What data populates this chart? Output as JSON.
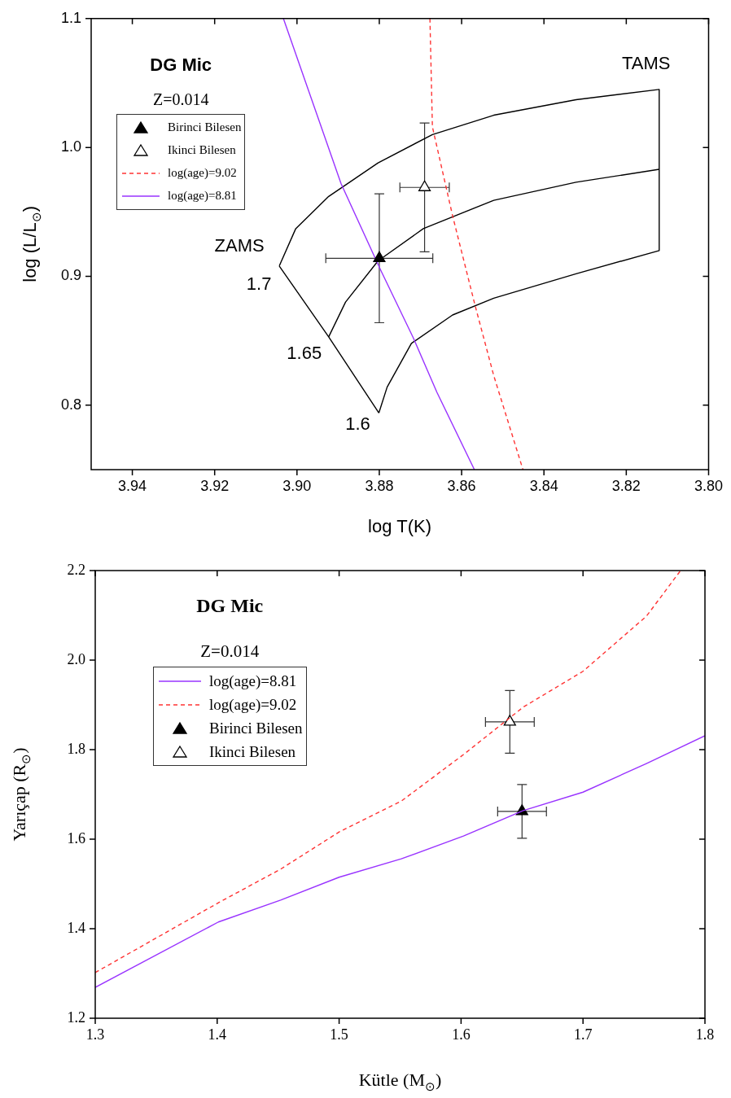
{
  "chart_data": [
    {
      "type": "line",
      "title": "DG Mic",
      "subtitle": "Z=0.014",
      "xlabel": "log T(K)",
      "ylabel": "log (L/L$_{⊙}$)",
      "annotations": [
        {
          "text": "ZAMS",
          "x": 3.9043,
          "y": 0.908
        },
        {
          "text": "TAMS",
          "x": 3.812,
          "y": 1.045
        },
        {
          "text": "1.7",
          "x": 3.9043,
          "y": 0.908
        },
        {
          "text": "1.65",
          "x": 3.8923,
          "y": 0.853
        },
        {
          "text": "1.6",
          "x": 3.8801,
          "y": 0.794
        }
      ],
      "xlim": [
        3.95,
        3.8
      ],
      "xticks": [
        3.94,
        3.92,
        {
          "value": 3.9,
          "label": "3.90"
        },
        {
          "value": 3.88,
          "label": "3.88"
        },
        3.86,
        3.84,
        3.82,
        {
          "value": 3.8,
          "label": "3.80"
        }
      ],
      "ylim": [
        0.75,
        1.1
      ],
      "yticks": [
        0.8,
        0.9,
        {
          "value": 1,
          "label": "1.0"
        },
        1.1
      ],
      "grid": false,
      "legend": "top left",
      "series": [
        {
          "name": "Birinci Bilesen",
          "type": "scatter",
          "marker": "triangle",
          "color": "#000000",
          "x": [
            3.88
          ],
          "values": [
            0.914
          ],
          "errors": [
            0.05
          ],
          "xerrors": [
            0.013
          ]
        },
        {
          "name": "Ikinci Bilesen",
          "type": "scatter",
          "marker": "triangle",
          "color": "#ffffff",
          "x": [
            3.869
          ],
          "values": [
            0.969
          ],
          "errors": [
            0.05
          ],
          "xerrors": [
            0.006
          ]
        },
        {
          "name": "log(age)=9.02",
          "type": "line",
          "line_style": "dashed",
          "color": "#ff3333",
          "x": [
            3.8677,
            3.8671,
            3.8622,
            3.8567,
            3.8522,
            3.8451
          ],
          "values": [
            1.1,
            1.016,
            0.947,
            0.877,
            0.823,
            0.75
          ]
        },
        {
          "name": "log(age)=8.81",
          "type": "line",
          "line_style": "solid",
          "color": "#9933ff",
          "x": [
            3.9033,
            3.8974,
            3.8893,
            3.8797,
            3.8717,
            3.866,
            3.8569
          ],
          "values": [
            1.1,
            1.046,
            0.972,
            0.905,
            0.852,
            0.81,
            0.75
          ]
        },
        {
          "type": "line",
          "line_style": "solid",
          "color": "#000000",
          "x": [
            3.9043,
            3.9003,
            3.8923,
            3.8803,
            3.8671,
            3.8522,
            3.8322,
            3.812
          ],
          "values": [
            0.908,
            0.937,
            0.962,
            0.988,
            1.01,
            1.025,
            1.037,
            1.045
          ]
        },
        {
          "type": "line",
          "line_style": "solid",
          "color": "#000000",
          "x": [
            3.8923,
            3.8882,
            3.8803,
            3.8693,
            3.8522,
            3.8322,
            3.812
          ],
          "values": [
            0.853,
            0.88,
            0.912,
            0.937,
            0.959,
            0.973,
            0.983
          ]
        },
        {
          "type": "line",
          "line_style": "solid",
          "color": "#000000",
          "x": [
            3.8801,
            3.8781,
            3.8722,
            3.8622,
            3.8522,
            3.8322,
            3.812
          ],
          "values": [
            0.794,
            0.814,
            0.848,
            0.87,
            0.883,
            0.902,
            0.92
          ]
        },
        {
          "type": "line",
          "line_style": "solid",
          "color": "#000000",
          "x": [
            3.9043,
            3.8923,
            3.8801
          ],
          "values": [
            0.908,
            0.853,
            0.794
          ]
        },
        {
          "type": "line",
          "line_style": "solid",
          "color": "#000000",
          "x": [
            3.812,
            3.812,
            3.812
          ],
          "values": [
            1.045,
            0.983,
            0.92
          ]
        }
      ]
    },
    {
      "type": "line",
      "title": "DG Mic",
      "subtitle": "Z=0.014",
      "xlabel": "Kütle (M$_{⊙}$)",
      "ylabel": "Yarıçap (R$_{⊙}$)",
      "xlim": [
        1.3,
        1.8
      ],
      "xticks": [
        1.3,
        1.4,
        1.5,
        1.6,
        1.7,
        1.8
      ],
      "ylim": [
        1.2,
        2.2
      ],
      "yticks": [
        1.2,
        1.4,
        1.6,
        1.8,
        {
          "value": 2,
          "label": "2.0"
        },
        2.2
      ],
      "grid": false,
      "legend": "top left",
      "series": [
        {
          "name": "log(age)=8.81",
          "type": "line",
          "line_style": "solid",
          "color": "#9933ff",
          "x": [
            1.3,
            1.401,
            1.452,
            1.5,
            1.551,
            1.602,
            1.651,
            1.7,
            1.752,
            1.8
          ],
          "values": [
            1.269,
            1.415,
            1.464,
            1.515,
            1.556,
            1.607,
            1.664,
            1.705,
            1.769,
            1.831
          ]
        },
        {
          "name": "log(age)=9.02",
          "type": "line",
          "line_style": "dashed",
          "color": "#ff3333",
          "x": [
            1.3,
            1.401,
            1.452,
            1.5,
            1.551,
            1.602,
            1.651,
            1.7,
            1.752,
            1.78
          ],
          "values": [
            1.302,
            1.458,
            1.533,
            1.616,
            1.685,
            1.789,
            1.895,
            1.975,
            2.098,
            2.2
          ]
        },
        {
          "name": "Birinci Bilesen",
          "type": "scatter",
          "marker": "triangle",
          "color": "#000000",
          "x": [
            1.65
          ],
          "values": [
            1.662
          ],
          "errors": [
            0.06
          ],
          "xerrors": [
            0.02
          ]
        },
        {
          "name": "Ikinci Bilesen",
          "type": "scatter",
          "marker": "triangle",
          "color": "#ffffff",
          "x": [
            1.64
          ],
          "values": [
            1.862
          ],
          "errors": [
            0.07
          ],
          "xerrors": [
            0.02
          ]
        }
      ]
    }
  ]
}
